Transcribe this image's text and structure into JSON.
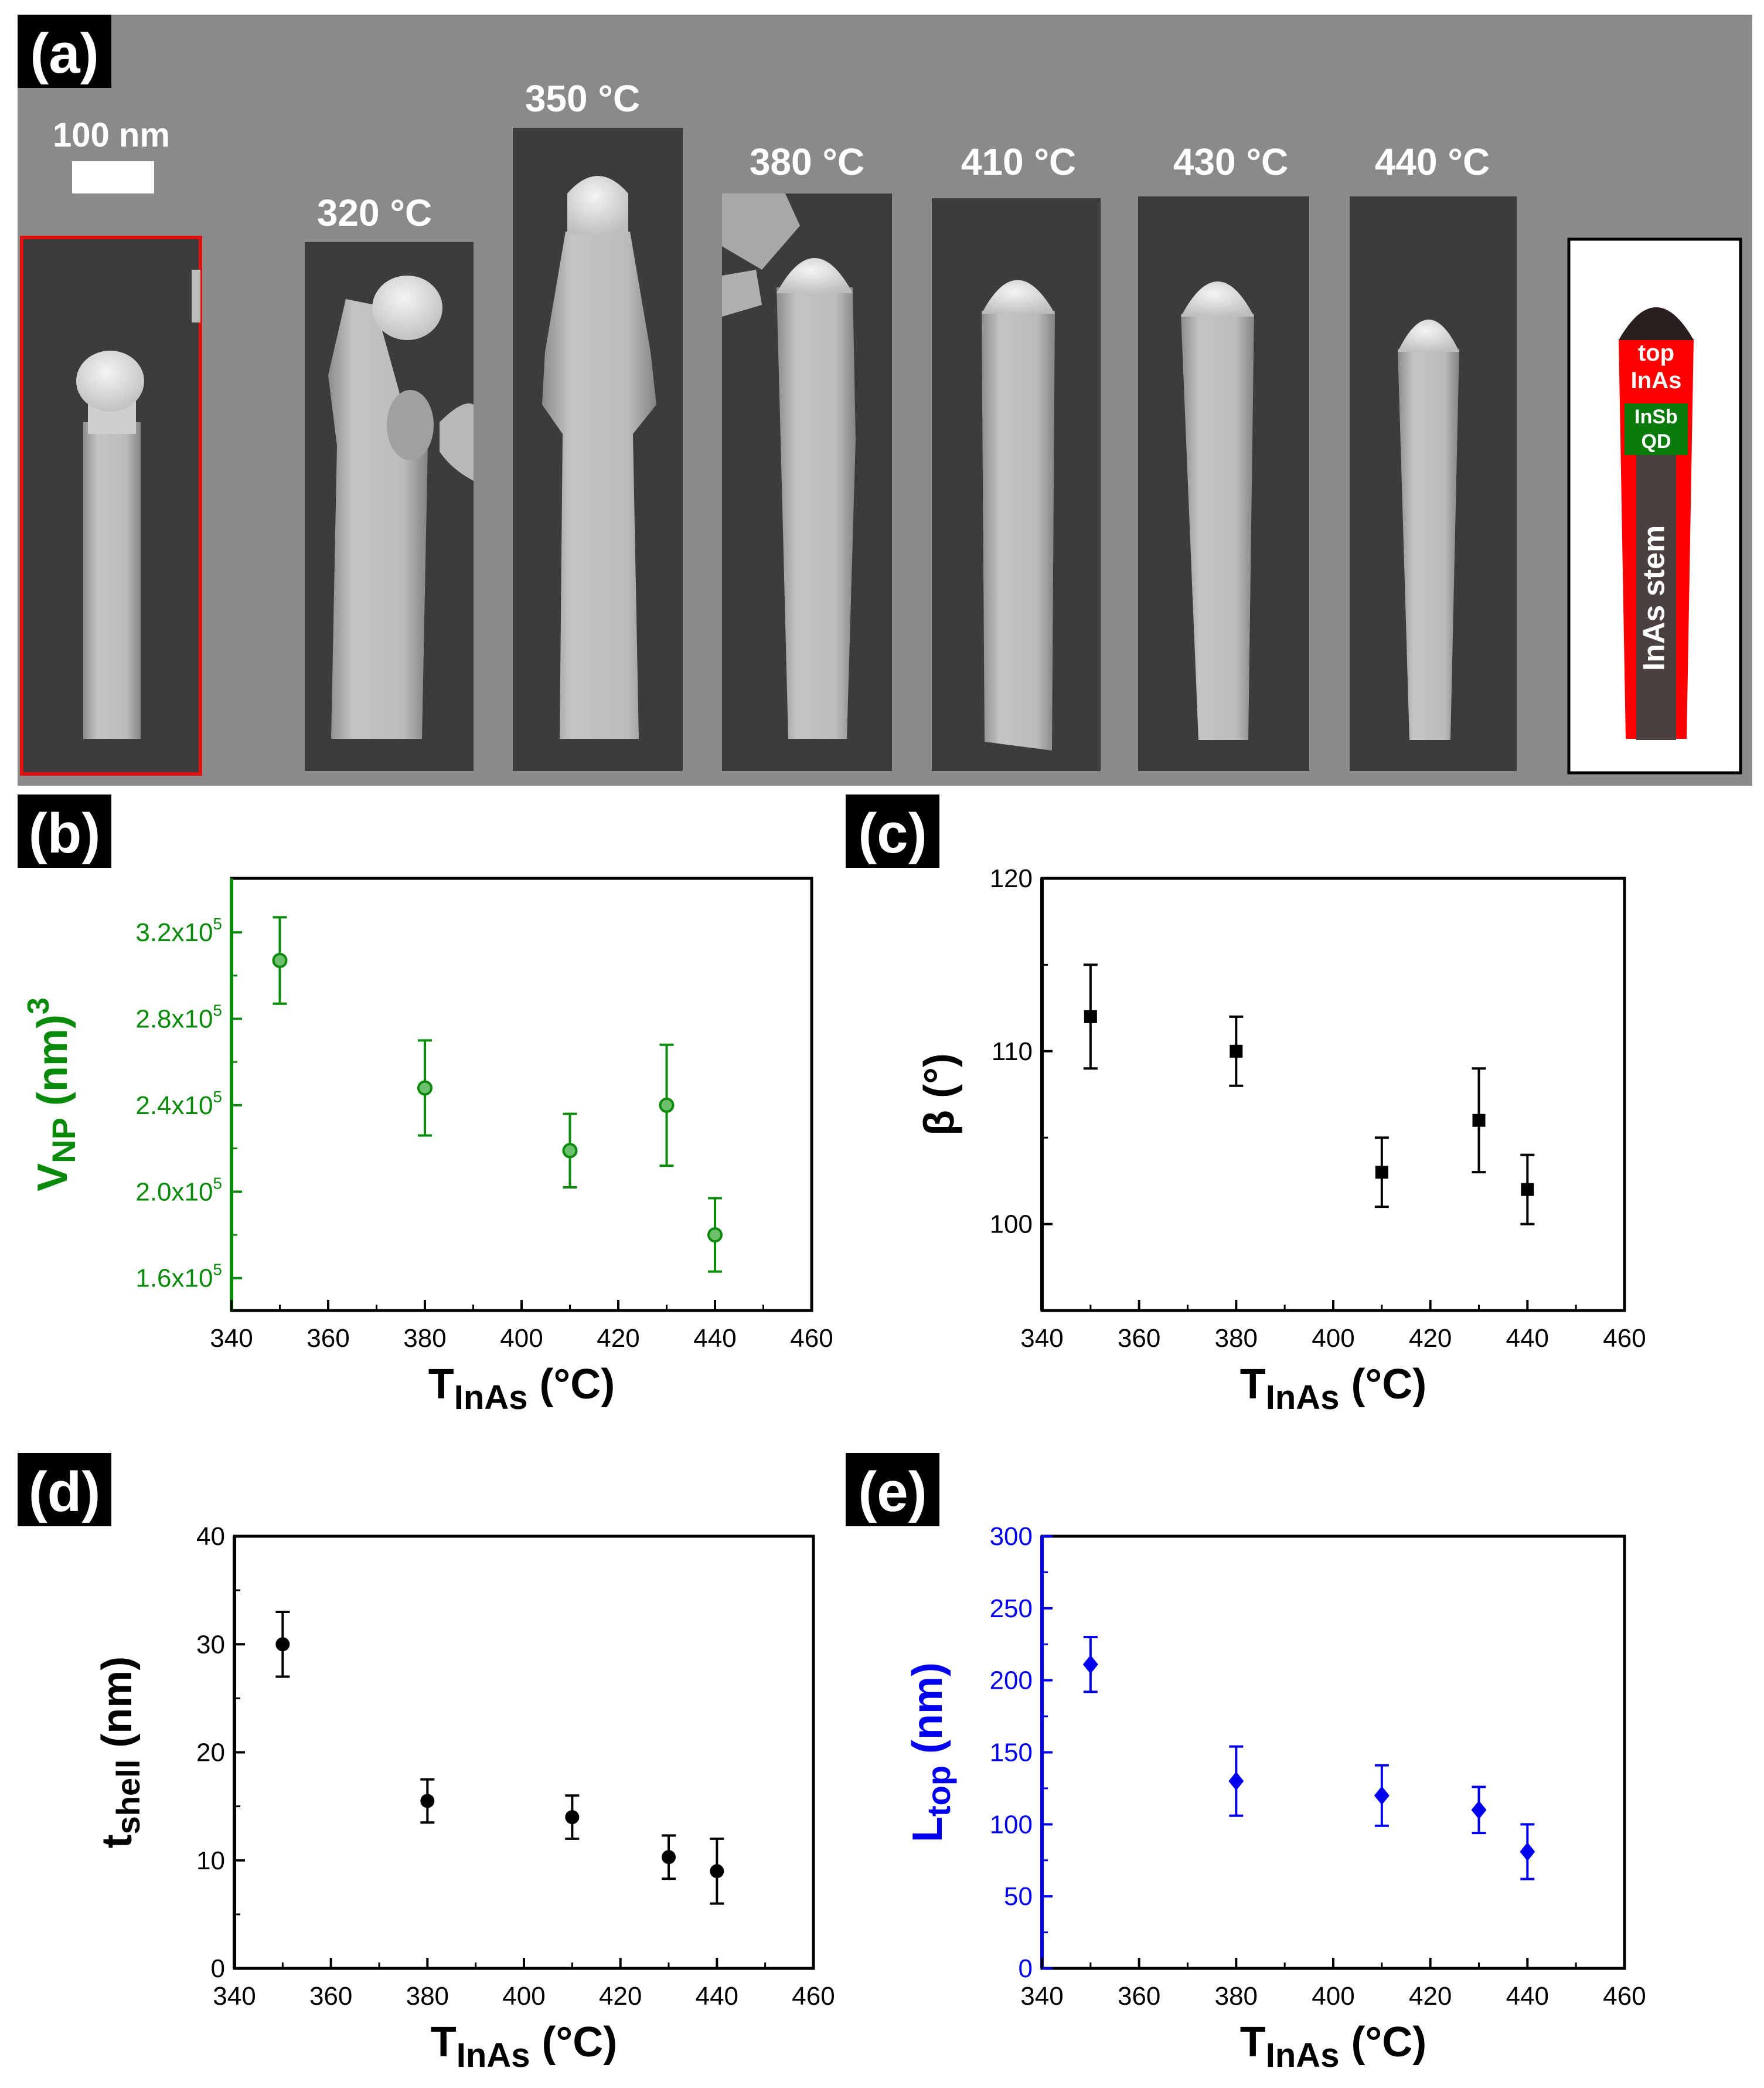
{
  "panel_a": {
    "label": "(a)",
    "scale_bar": "100 nm",
    "temperatures": [
      "320 °C",
      "350 °C",
      "380 °C",
      "410 °C",
      "430 °C",
      "440 °C"
    ],
    "schematic": {
      "top": "top",
      "inas": "InAs",
      "insb": "InSb",
      "qd": "QD",
      "stem": "InAs stem"
    },
    "colors": {
      "background": "#8a8a8a",
      "sem_bg": "#3c3c3c",
      "red": "#ff0000",
      "green": "#0a7a0a",
      "cap": "#2a1e1e",
      "stem": "#4a4040"
    }
  },
  "chart_data": [
    {
      "id": "b",
      "panel_label": "(b)",
      "type": "scatter",
      "xlabel_main": "T",
      "xlabel_sub": "InAs",
      "xlabel_tail": " (°C)",
      "ylabel_main": "V",
      "ylabel_sub": "NP",
      "ylabel_tail": " (nm)",
      "ylabel_sup": "3",
      "xlim": [
        340,
        460
      ],
      "ylim": [
        145000,
        345000
      ],
      "xticks": [
        340,
        360,
        380,
        400,
        420,
        440,
        460
      ],
      "yticks": [
        160000,
        200000,
        240000,
        280000,
        320000
      ],
      "yticklabels": [
        [
          "1.6x10",
          "5"
        ],
        [
          "2.0x10",
          "5"
        ],
        [
          "2.4x10",
          "5"
        ],
        [
          "2.8x10",
          "5"
        ],
        [
          "3.2x10",
          "5"
        ]
      ],
      "color": "#0a8a0a",
      "marker": "circle",
      "x": [
        350,
        380,
        410,
        430,
        440
      ],
      "y": [
        307000,
        248000,
        219000,
        240000,
        180000
      ],
      "err": [
        20000,
        22000,
        17000,
        28000,
        17000
      ]
    },
    {
      "id": "c",
      "panel_label": "(c)",
      "type": "scatter",
      "xlabel_main": "T",
      "xlabel_sub": "InAs",
      "xlabel_tail": " (°C)",
      "ylabel_main": "β (°)",
      "ylabel_sub": "",
      "ylabel_tail": "",
      "ylabel_sup": "",
      "xlim": [
        340,
        460
      ],
      "ylim": [
        95,
        120
      ],
      "xticks": [
        340,
        360,
        380,
        400,
        420,
        440,
        460
      ],
      "yticks": [
        100,
        110,
        120
      ],
      "yticklabels": [
        [
          "100",
          ""
        ],
        [
          "110",
          ""
        ],
        [
          "120",
          ""
        ]
      ],
      "color": "#000000",
      "marker": "square",
      "x": [
        350,
        380,
        410,
        430,
        440
      ],
      "y": [
        112,
        110,
        103,
        106,
        102
      ],
      "err": [
        3,
        2,
        2,
        3,
        2
      ]
    },
    {
      "id": "d",
      "panel_label": "(d)",
      "type": "scatter",
      "xlabel_main": "T",
      "xlabel_sub": "InAs",
      "xlabel_tail": " (°C)",
      "ylabel_main": "t",
      "ylabel_sub": "shell",
      "ylabel_tail": " (nm)",
      "ylabel_sup": "",
      "xlim": [
        340,
        460
      ],
      "ylim": [
        0,
        40
      ],
      "xticks": [
        340,
        360,
        380,
        400,
        420,
        440,
        460
      ],
      "yticks": [
        0,
        10,
        20,
        30,
        40
      ],
      "yticklabels": [
        [
          "0",
          ""
        ],
        [
          "10",
          ""
        ],
        [
          "20",
          ""
        ],
        [
          "30",
          ""
        ],
        [
          "40",
          ""
        ]
      ],
      "color": "#000000",
      "marker": "circle",
      "x": [
        350,
        380,
        410,
        430,
        440
      ],
      "y": [
        30,
        15.5,
        14,
        10.3,
        9
      ],
      "err": [
        3,
        2,
        2,
        2,
        3
      ]
    },
    {
      "id": "e",
      "panel_label": "(e)",
      "type": "scatter",
      "xlabel_main": "T",
      "xlabel_sub": "InAs",
      "xlabel_tail": " (°C)",
      "ylabel_main": "L",
      "ylabel_sub": "top",
      "ylabel_tail": " (nm)",
      "ylabel_sup": "",
      "xlim": [
        340,
        460
      ],
      "ylim": [
        0,
        300
      ],
      "xticks": [
        340,
        360,
        380,
        400,
        420,
        440,
        460
      ],
      "yticks": [
        0,
        50,
        100,
        150,
        200,
        250,
        300
      ],
      "yticklabels": [
        [
          "0",
          ""
        ],
        [
          "50",
          ""
        ],
        [
          "100",
          ""
        ],
        [
          "150",
          ""
        ],
        [
          "200",
          ""
        ],
        [
          "250",
          ""
        ],
        [
          "300",
          ""
        ]
      ],
      "color": "#0000ee",
      "marker": "diamond",
      "x": [
        350,
        380,
        410,
        430,
        440
      ],
      "y": [
        211,
        130,
        120,
        110,
        81
      ],
      "err": [
        19,
        24,
        21,
        16,
        19
      ]
    }
  ]
}
